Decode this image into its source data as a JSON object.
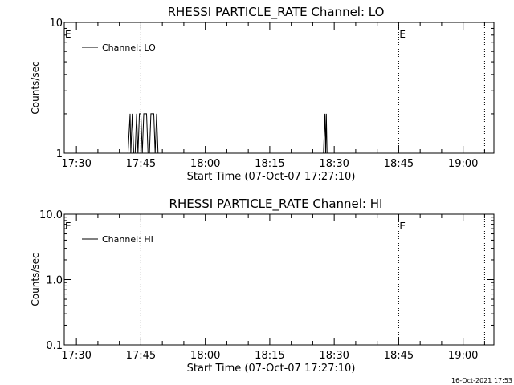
{
  "chart_data": [
    {
      "type": "line",
      "title": "RHESSI PARTICLE_RATE Channel: LO",
      "xlabel": "Start Time (07-Oct-07 17:27:10)",
      "ylabel": "Counts/sec",
      "y_scale": "log",
      "ylim": [
        1,
        10
      ],
      "y_ticks": [
        "1",
        "10"
      ],
      "xlim": [
        "17:27:10",
        "19:07:10"
      ],
      "x_ticks": [
        "17:30",
        "17:45",
        "18:00",
        "18:15",
        "18:30",
        "18:45",
        "19:00"
      ],
      "legend": {
        "label": "Channel: LO",
        "placement": "top-left"
      },
      "markers": [
        {
          "time": "17:45:00",
          "label": ""
        },
        {
          "time": "18:45:00",
          "label": "E"
        },
        {
          "time": "19:05:00",
          "label": ""
        }
      ],
      "left_marker_label": "E",
      "series": [
        {
          "name": "Channel: LO",
          "x": [
            "17:27:10",
            "17:42:00",
            "17:42:30",
            "17:42:40",
            "17:43:00",
            "17:43:20",
            "17:43:40",
            "17:44:00",
            "17:44:20",
            "17:44:40",
            "17:45:00",
            "17:45:20",
            "17:45:40",
            "17:46:00",
            "17:46:20",
            "17:46:40",
            "17:47:00",
            "17:47:20",
            "17:47:40",
            "17:48:00",
            "17:48:20",
            "17:48:40",
            "17:49:00",
            "18:27:30",
            "18:27:50",
            "18:28:00",
            "18:28:10",
            "18:28:20",
            "18:28:30",
            "19:07:10"
          ],
          "y": [
            1,
            1,
            2,
            1,
            2,
            1,
            1,
            2,
            1,
            2,
            2,
            1,
            2,
            2,
            2,
            1,
            1,
            2,
            2,
            2,
            1,
            2,
            1,
            1,
            2,
            1,
            2,
            1,
            1,
            1
          ]
        }
      ]
    },
    {
      "type": "line",
      "title": "RHESSI PARTICLE_RATE Channel: HI",
      "xlabel": "Start Time (07-Oct-07 17:27:10)",
      "ylabel": "Counts/sec",
      "y_scale": "log",
      "ylim": [
        0.1,
        10
      ],
      "y_ticks": [
        "0.1",
        "1.0",
        "10.0"
      ],
      "xlim": [
        "17:27:10",
        "19:07:10"
      ],
      "x_ticks": [
        "17:30",
        "17:45",
        "18:00",
        "18:15",
        "18:30",
        "18:45",
        "19:00"
      ],
      "legend": {
        "label": "Channel: HI",
        "placement": "top-left"
      },
      "markers": [
        {
          "time": "17:45:00",
          "label": ""
        },
        {
          "time": "18:45:00",
          "label": "E"
        },
        {
          "time": "19:05:00",
          "label": ""
        }
      ],
      "left_marker_label": "E",
      "series": [
        {
          "name": "Channel: HI",
          "x": [],
          "y": []
        }
      ]
    }
  ],
  "footer": {
    "timestamp": "16-Oct-2021 17:53"
  }
}
